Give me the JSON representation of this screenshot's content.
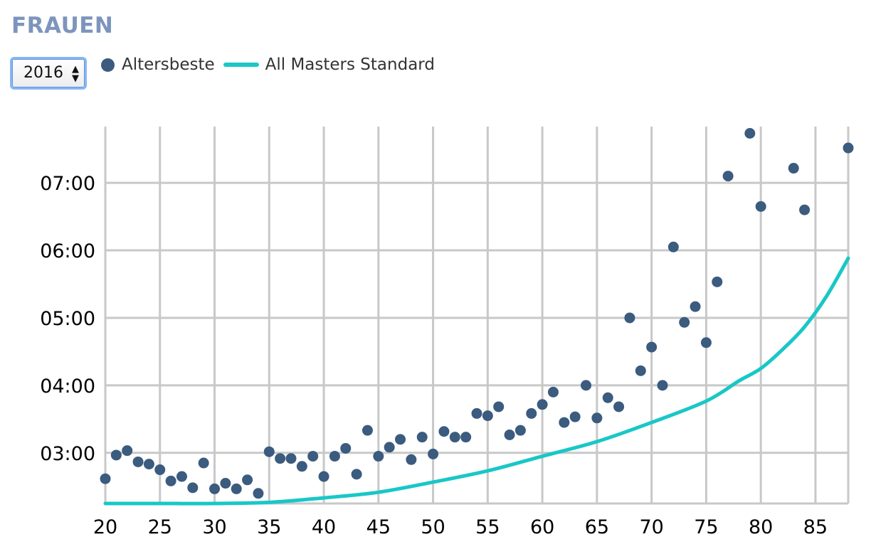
{
  "header": {
    "title": "FRAUEN"
  },
  "controls": {
    "year_select_value": "2016",
    "year_select_arrows": "▲▼"
  },
  "legend": {
    "points_label": "Altersbeste",
    "line_label": "All Masters Standard"
  },
  "colors": {
    "points": "#3b5b7f",
    "line": "#19c7c7",
    "grid": "#c8c8c8",
    "title": "#7d95bd"
  },
  "chart_data": {
    "type": "scatter",
    "title": "FRAUEN",
    "xlabel": "",
    "ylabel": "",
    "xlim": [
      20,
      88
    ],
    "ylim": [
      "02:15",
      "07:50"
    ],
    "x_ticks": [
      "20",
      "25",
      "30",
      "35",
      "40",
      "45",
      "50",
      "55",
      "60",
      "65",
      "70",
      "75",
      "80",
      "85"
    ],
    "y_ticks": [
      "03:00",
      "04:00",
      "05:00",
      "06:00",
      "07:00"
    ],
    "grid": true,
    "legend_position": "top-left",
    "series": [
      {
        "name": "Altersbeste",
        "kind": "scatter",
        "points": [
          [
            20,
            "02:37"
          ],
          [
            21,
            "02:58"
          ],
          [
            22,
            "03:02"
          ],
          [
            23,
            "02:52"
          ],
          [
            24,
            "02:50"
          ],
          [
            25,
            "02:45"
          ],
          [
            26,
            "02:35"
          ],
          [
            27,
            "02:39"
          ],
          [
            28,
            "02:29"
          ],
          [
            29,
            "02:51"
          ],
          [
            30,
            "02:28"
          ],
          [
            31,
            "02:33"
          ],
          [
            32,
            "02:28"
          ],
          [
            33,
            "02:36"
          ],
          [
            34,
            "02:24"
          ],
          [
            35,
            "03:01"
          ],
          [
            36,
            "02:55"
          ],
          [
            37,
            "02:55"
          ],
          [
            38,
            "02:48"
          ],
          [
            39,
            "02:57"
          ],
          [
            40,
            "02:39"
          ],
          [
            41,
            "02:57"
          ],
          [
            42,
            "03:04"
          ],
          [
            43,
            "02:41"
          ],
          [
            44,
            "03:20"
          ],
          [
            45,
            "02:57"
          ],
          [
            46,
            "03:05"
          ],
          [
            47,
            "03:12"
          ],
          [
            48,
            "02:54"
          ],
          [
            49,
            "03:14"
          ],
          [
            50,
            "02:59"
          ],
          [
            51,
            "03:19"
          ],
          [
            52,
            "03:14"
          ],
          [
            53,
            "03:14"
          ],
          [
            54,
            "03:35"
          ],
          [
            55,
            "03:33"
          ],
          [
            56,
            "03:41"
          ],
          [
            57,
            "03:16"
          ],
          [
            58,
            "03:20"
          ],
          [
            59,
            "03:35"
          ],
          [
            60,
            "03:43"
          ],
          [
            61,
            "03:54"
          ],
          [
            62,
            "03:27"
          ],
          [
            63,
            "03:32"
          ],
          [
            64,
            "04:00"
          ],
          [
            65,
            "03:31"
          ],
          [
            66,
            "03:49"
          ],
          [
            67,
            "03:41"
          ],
          [
            68,
            "05:00"
          ],
          [
            69,
            "04:13"
          ],
          [
            70,
            "04:34"
          ],
          [
            71,
            "04:00"
          ],
          [
            72,
            "06:03"
          ],
          [
            73,
            "04:56"
          ],
          [
            74,
            "05:10"
          ],
          [
            75,
            "04:38"
          ],
          [
            76,
            "05:32"
          ],
          [
            77,
            "07:06"
          ],
          [
            79,
            "07:44"
          ],
          [
            80,
            "06:39"
          ],
          [
            83,
            "07:13"
          ],
          [
            84,
            "06:36"
          ],
          [
            88,
            "07:31"
          ]
        ]
      },
      {
        "name": "All Masters Standard",
        "kind": "line",
        "points": [
          [
            20,
            "02:15"
          ],
          [
            25,
            "02:15"
          ],
          [
            30,
            "02:15"
          ],
          [
            35,
            "02:16"
          ],
          [
            40,
            "02:20"
          ],
          [
            45,
            "02:25"
          ],
          [
            50,
            "02:34"
          ],
          [
            55,
            "02:44"
          ],
          [
            60,
            "02:57"
          ],
          [
            65,
            "03:10"
          ],
          [
            70,
            "03:27"
          ],
          [
            75,
            "03:46"
          ],
          [
            78,
            "04:04"
          ],
          [
            80,
            "04:15"
          ],
          [
            82,
            "04:32"
          ],
          [
            84,
            "04:52"
          ],
          [
            86,
            "05:19"
          ],
          [
            88,
            "05:53"
          ]
        ]
      }
    ]
  }
}
